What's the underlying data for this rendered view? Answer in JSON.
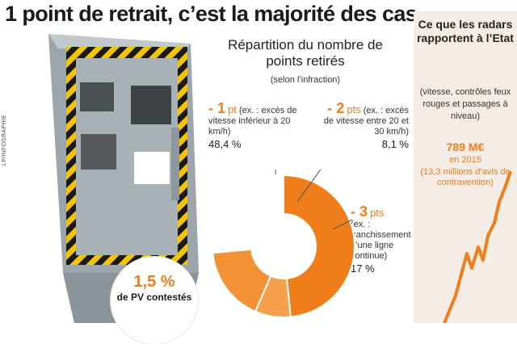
{
  "headline": "1 point de retrait, c’est la majorité des cas",
  "credit": "LP/INFOGRAPHIE",
  "contested": {
    "percent": "1,5 %",
    "label": "de PV contestés"
  },
  "colors": {
    "accent": "#ef7d1a",
    "slice1": "#ef7d1a",
    "slice2": "#f4a04c",
    "slice3": "#f29136",
    "panel": "#f5ede5"
  },
  "chart_data": {
    "type": "pie",
    "title": "Répartition du nombre de points retirés",
    "subtitle": "(selon l’infraction)",
    "slices": [
      {
        "label_big": "- 1",
        "label_unit": "pt",
        "desc": "(ex. : excès de vitesse inférieur à 20 km/h)",
        "value": 48.4,
        "value_label": "48,4 %"
      },
      {
        "label_big": "- 2",
        "label_unit": "pts",
        "desc": "(ex. : excès de vitesse entre 20 et 30 km/h)",
        "value": 8.1,
        "value_label": "8,1 %"
      },
      {
        "label_big": "- 3",
        "label_unit": "pts",
        "desc": "(ex. : franchissement d’une ligne continue)",
        "value": 17,
        "value_label": "17 %"
      }
    ]
  },
  "side": {
    "title": "Ce que les radars rapportent à l’Etat",
    "subtitle": "(vitesse, contrôles feux rouges et passages à niveau)",
    "amount": "789 M€",
    "year": "en 2015",
    "detail": "(13,3 millions d’avis de contravention)"
  }
}
